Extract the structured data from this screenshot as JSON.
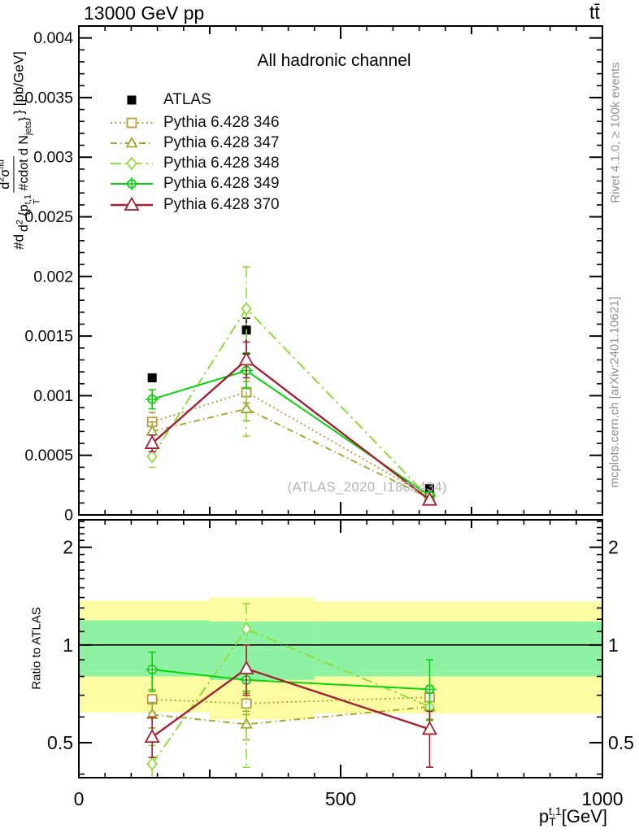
{
  "header": {
    "left_title": "13000 GeV pp",
    "right_title": "tt̄"
  },
  "main_panel": {
    "channel_label": "All hadronic channel",
    "watermark": "(ATLAS_2020_I1801434)"
  },
  "side_texts": {
    "rivet": "Rivet 4.1.0, ≥ 100k events",
    "mcplots": "mcplots.cern.ch [arXiv:2401.10621]"
  },
  "axes": {
    "x_title": {
      "base": "p",
      "sup": "t,1",
      "sub": "T",
      "unit": " [GeV]"
    },
    "y_title": {
      "prefix": "#d",
      "num_main": "d",
      "num_exp": "2",
      "num_sigma": "σ",
      "num_sup": "fid",
      "den_main": "d",
      "den_exp": "2",
      "den_open": " {p",
      "den_sup": "t,1",
      "den_sub": "T",
      "den_cdot": " #cdot d N",
      "den_jets_sub": "jets",
      "den_close": "}",
      "suffix": "} [pb/GeV]"
    },
    "ratio_title": "Ratio to ATLAS"
  },
  "chart_data": {
    "type": "line",
    "title": "All hadronic channel",
    "xlabel": "p_T^{t,1} [GeV]",
    "ylabel": "#d d^2σ^fid / d^2{p_T^{t,1} #cdot d N_jets} [pb/GeV]",
    "x_values_gev": [
      140,
      320,
      670
    ],
    "xlim": [
      0,
      1000
    ],
    "x_major_ticks": [
      0,
      500,
      1000
    ],
    "x_tick_labels": [
      "0",
      "500",
      "1000"
    ],
    "x_medium_ticks": [
      250,
      750
    ],
    "x_minor_step": 50,
    "main": {
      "ylim": [
        0,
        0.0041
      ],
      "y_major_ticks": [
        0,
        0.0005,
        0.001,
        0.0015,
        0.002,
        0.0025,
        0.003,
        0.0035,
        0.004
      ],
      "y_tick_labels": [
        "0",
        "0.0005",
        "0.001",
        "0.0015",
        "0.002",
        "0.0025",
        "0.003",
        "0.0035",
        "0.004"
      ],
      "y_minor_step": 0.0001
    },
    "ratio": {
      "scale": "log",
      "ylim": [
        0.39,
        2.43
      ],
      "baseline": 1,
      "y_major_ticks": [
        0.5,
        1,
        2
      ],
      "y_tick_labels": [
        "0.5",
        "1",
        "2"
      ],
      "y_minor_ticks": [
        0.4,
        0.6,
        0.7,
        0.8,
        0.9,
        1.1,
        1.2,
        1.3,
        1.4,
        1.5,
        1.6,
        1.7,
        1.8,
        1.9,
        2.1,
        2.2,
        2.3,
        2.4
      ],
      "bands": {
        "bin_edges_gev": [
          0,
          250,
          450,
          1000
        ],
        "yellow_color": "#fcfca2",
        "green_color": "#8ef2a2",
        "yellow": [
          [
            0.62,
            1.37
          ],
          [
            0.59,
            1.4
          ],
          [
            0.615,
            1.36
          ]
        ],
        "green": [
          [
            0.8,
            1.19
          ],
          [
            0.78,
            1.18
          ],
          [
            0.8,
            1.18
          ]
        ]
      }
    },
    "series": [
      {
        "label": "ATLAS",
        "color": "#000000",
        "marker": "square-filled",
        "dash": null,
        "width": 2,
        "line": false,
        "main": {
          "values": [
            0.00115,
            0.00155,
            0.00022
          ],
          "err_lo": [
            0.00112,
            0.00135,
            0.0002
          ],
          "err_hi": [
            0.00118,
            0.00165,
            0.00024
          ]
        },
        "ratio": null
      },
      {
        "label": "Pythia 6.428 346",
        "color": "#bc9b3e",
        "marker": "square-open",
        "dash": "2,3.5",
        "width": 1.9,
        "line": true,
        "main": {
          "values": [
            0.00078,
            0.00103,
            0.00015
          ],
          "err_lo": [
            0.0007,
            0.00094,
            0.00013
          ],
          "err_hi": [
            0.00086,
            0.00112,
            0.00017
          ]
        },
        "ratio": {
          "values": [
            0.68,
            0.66,
            0.69
          ],
          "err_lo": [
            0.62,
            0.61,
            0.63
          ],
          "err_hi": [
            0.73,
            0.71,
            0.75
          ]
        }
      },
      {
        "label": "Pythia 6.428 347",
        "color": "#a4a52f",
        "marker": "triangle-open",
        "dash": "8,4,1.5,4",
        "width": 1.9,
        "line": true,
        "main": {
          "values": [
            0.0007,
            0.00089,
            0.00014
          ],
          "err_lo": [
            0.00062,
            0.00079,
            0.000125
          ],
          "err_hi": [
            0.00078,
            0.00099,
            0.000155
          ]
        },
        "ratio": {
          "values": [
            0.61,
            0.57,
            0.645
          ],
          "err_lo": [
            0.555,
            0.51,
            0.585
          ],
          "err_hi": [
            0.665,
            0.625,
            0.71
          ]
        }
      },
      {
        "label": "Pythia 6.428 348",
        "color": "#8fdc3a",
        "marker": "diamond-open",
        "dash": "13,5,2.5,5",
        "width": 2,
        "line": true,
        "main": {
          "values": [
            0.00049,
            0.00173,
            0.00014
          ],
          "err_lo": [
            0.0004,
            0.00066,
            0.00012
          ],
          "err_hi": [
            0.00058,
            0.00208,
            0.00016
          ]
        },
        "ratio": {
          "values": [
            0.43,
            1.12,
            0.645
          ],
          "err_lo": [
            0.37,
            0.42,
            0.55
          ],
          "err_hi": [
            0.49,
            1.34,
            0.74
          ]
        }
      },
      {
        "label": "Pythia 6.428 349",
        "color": "#0bd30b",
        "marker": "circle-plus",
        "dash": null,
        "width": 2,
        "line": true,
        "main": {
          "values": [
            0.00097,
            0.00121,
            0.00016
          ],
          "err_lo": [
            0.00089,
            0.00106,
            0.00014
          ],
          "err_hi": [
            0.00105,
            0.00136,
            0.00018
          ]
        },
        "ratio": {
          "values": [
            0.84,
            0.78,
            0.73
          ],
          "err_lo": [
            0.72,
            0.72,
            0.59
          ],
          "err_hi": [
            0.95,
            0.845,
            0.9
          ]
        }
      },
      {
        "label": "Pythia 6.428 370",
        "color": "#a32135",
        "marker": "triangle-open-big",
        "dash": null,
        "width": 2.4,
        "line": true,
        "main": {
          "values": [
            0.0006,
            0.0013,
            0.000125
          ],
          "err_lo": [
            0.00053,
            0.00115,
            9.5e-05
          ],
          "err_hi": [
            0.00067,
            0.00145,
            0.00015
          ]
        },
        "ratio": {
          "values": [
            0.52,
            0.845,
            0.55
          ],
          "err_lo": [
            0.45,
            0.7,
            0.42
          ],
          "err_hi": [
            0.6,
            1.0,
            0.625
          ]
        }
      }
    ]
  }
}
